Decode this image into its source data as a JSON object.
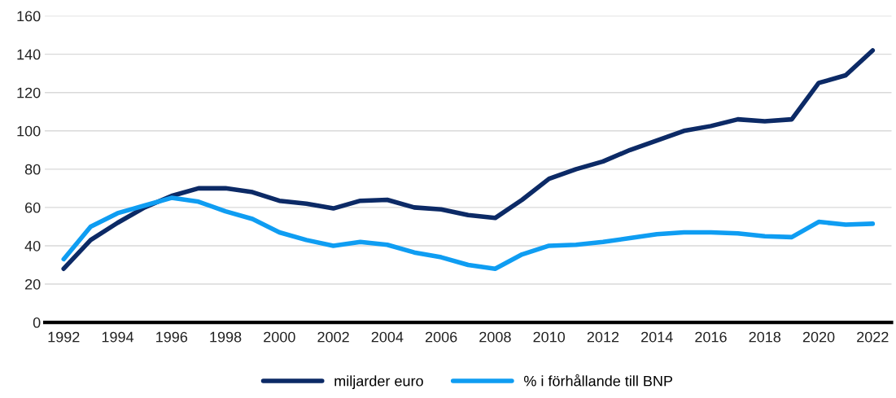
{
  "chart_data": {
    "type": "line",
    "x": [
      1992,
      1993,
      1994,
      1995,
      1996,
      1997,
      1998,
      1999,
      2000,
      2001,
      2002,
      2003,
      2004,
      2005,
      2006,
      2007,
      2008,
      2009,
      2010,
      2011,
      2012,
      2013,
      2014,
      2015,
      2016,
      2017,
      2018,
      2019,
      2020,
      2021,
      2022
    ],
    "series": [
      {
        "name": "miljarder euro",
        "color": "#0c2a66",
        "values": [
          28,
          43,
          52,
          60,
          66,
          70,
          70,
          68,
          63.5,
          62,
          59.5,
          63.5,
          64,
          60,
          59,
          56,
          54.5,
          64,
          75,
          80,
          84,
          90,
          95,
          100,
          102.5,
          106,
          105,
          106,
          125,
          129,
          142
        ]
      },
      {
        "name": "% i förhållande till BNP",
        "color": "#0f9df2",
        "values": [
          33,
          50,
          57,
          61,
          65,
          63,
          58,
          54,
          47,
          43,
          40,
          42,
          40.5,
          36.5,
          34,
          30,
          28,
          35.5,
          40,
          40.5,
          42,
          44,
          46,
          47,
          47,
          46.5,
          45,
          44.5,
          52.5,
          51,
          51.5
        ]
      }
    ],
    "xlim": [
      1991.3,
      2022.7
    ],
    "xticks": [
      1992,
      1994,
      1996,
      1998,
      2000,
      2002,
      2004,
      2006,
      2008,
      2010,
      2012,
      2014,
      2016,
      2018,
      2020,
      2022
    ],
    "ylim": [
      0,
      160
    ],
    "yticks": [
      0,
      20,
      40,
      60,
      80,
      100,
      120,
      140,
      160
    ],
    "grid": "y",
    "legend": "bottom",
    "marker": "none",
    "line_style": "solid"
  }
}
